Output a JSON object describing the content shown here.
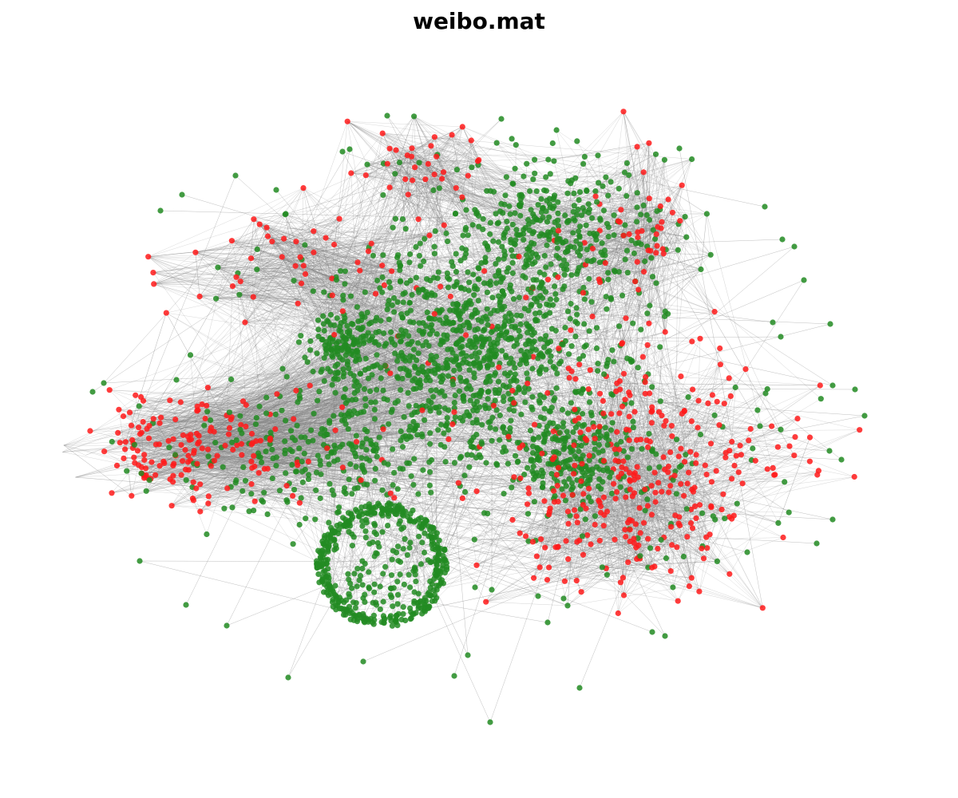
{
  "title": "weibo.mat",
  "graph": {
    "layout": "force-directed",
    "node_classes": [
      {
        "class": "0",
        "color": "#228B22"
      },
      {
        "class": "1",
        "color": "#FF1A1A"
      }
    ],
    "edge_color": "#808080",
    "axes": "off"
  }
}
